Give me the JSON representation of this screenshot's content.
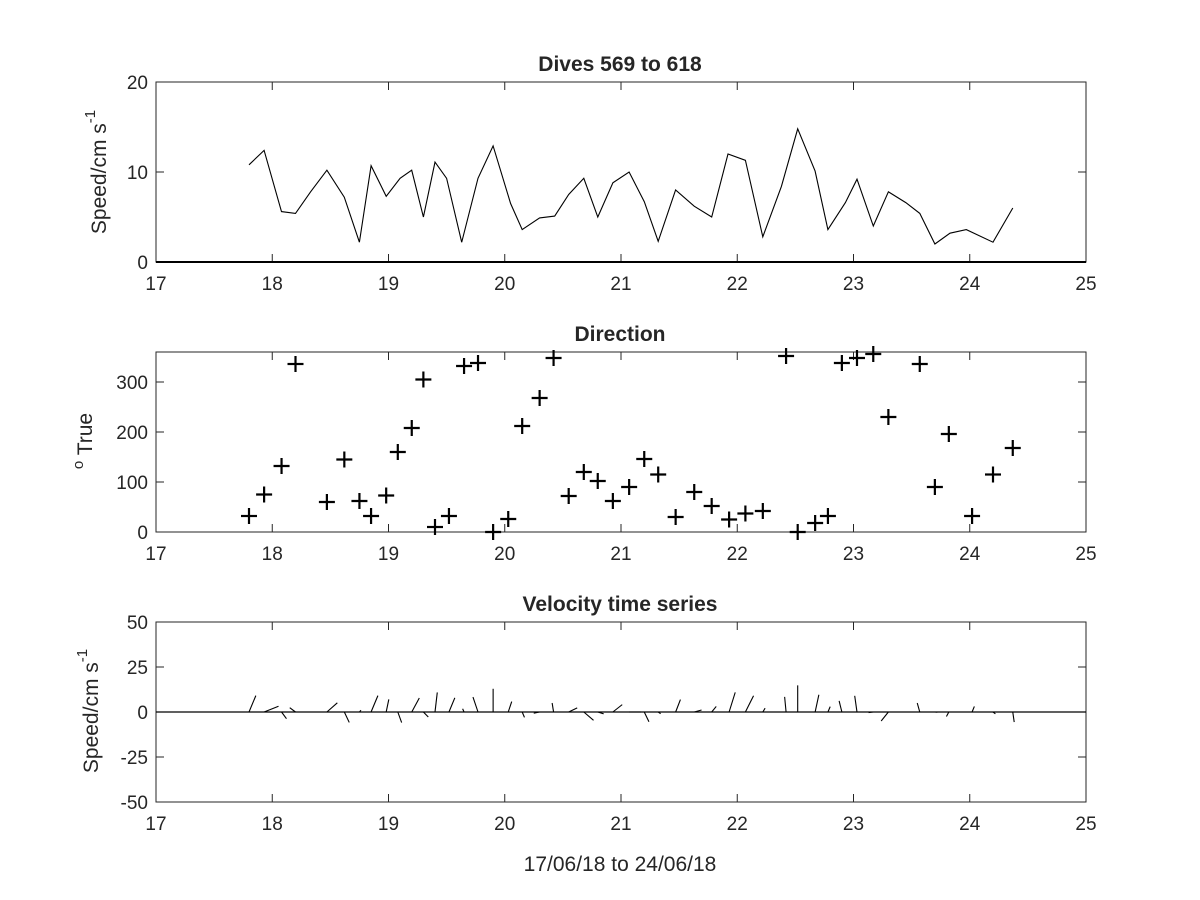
{
  "chart_data": [
    {
      "type": "line",
      "title": "Dives 569 to 618",
      "ylabel_parts": [
        "Speed/cm s",
        "-1"
      ],
      "xlim": [
        17,
        25
      ],
      "ylim": [
        0,
        20
      ],
      "xticks": [
        17,
        18,
        19,
        20,
        21,
        22,
        23,
        24,
        25
      ],
      "yticks": [
        0,
        10,
        20
      ],
      "grid": false,
      "series": [
        {
          "x": [
            17.8,
            17.93,
            18.08,
            18.2,
            18.33,
            18.47,
            18.62,
            18.75,
            18.85,
            18.98,
            19.1,
            19.2,
            19.3,
            19.4,
            19.5,
            19.63,
            19.77,
            19.9,
            20.05,
            20.15,
            20.3,
            20.43,
            20.55,
            20.68,
            20.8,
            20.93,
            21.07,
            21.2,
            21.32,
            21.47,
            21.63,
            21.78,
            21.92,
            22.07,
            22.22,
            22.38,
            22.52,
            22.67,
            22.78,
            22.93,
            23.03,
            23.17,
            23.3,
            23.45,
            23.57,
            23.7,
            23.83,
            23.97,
            24.2,
            24.37
          ],
          "y": [
            10.8,
            12.4,
            5.6,
            5.4,
            7.8,
            10.2,
            7.2,
            2.2,
            10.7,
            7.3,
            9.3,
            10.2,
            5.0,
            11.1,
            9.3,
            2.2,
            9.3,
            12.9,
            6.5,
            3.6,
            4.9,
            5.1,
            7.5,
            9.3,
            5.0,
            8.8,
            10.0,
            6.7,
            2.3,
            8.0,
            6.2,
            5.0,
            12.0,
            11.3,
            2.8,
            8.4,
            14.8,
            10.1,
            3.6,
            6.6,
            9.2,
            4.0,
            7.8,
            6.6,
            5.4,
            2.0,
            3.2,
            3.6,
            2.2,
            6.0
          ]
        }
      ]
    },
    {
      "type": "scatter",
      "title": "Direction",
      "ylabel_parts": [
        "o",
        " True"
      ],
      "xlim": [
        17,
        25
      ],
      "ylim": [
        0,
        360
      ],
      "xticks": [
        17,
        18,
        19,
        20,
        21,
        22,
        23,
        24,
        25
      ],
      "yticks": [
        0,
        100,
        200,
        300
      ],
      "grid": false,
      "marker": "+",
      "series": [
        {
          "x": [
            17.8,
            17.93,
            18.08,
            18.2,
            18.47,
            18.62,
            18.75,
            18.85,
            18.98,
            19.08,
            19.2,
            19.3,
            19.4,
            19.52,
            19.65,
            19.77,
            19.9,
            20.03,
            20.15,
            20.3,
            20.42,
            20.55,
            20.68,
            20.8,
            20.93,
            21.07,
            21.2,
            21.32,
            21.47,
            21.63,
            21.78,
            21.93,
            22.07,
            22.22,
            22.42,
            22.52,
            22.67,
            22.78,
            22.9,
            23.03,
            23.17,
            23.3,
            23.57,
            23.7,
            23.82,
            24.02,
            24.2,
            24.37
          ],
          "y": [
            32,
            75,
            132,
            336,
            60,
            145,
            62,
            32,
            73,
            160,
            208,
            305,
            10,
            32,
            332,
            338,
            0,
            26,
            212,
            268,
            348,
            72,
            120,
            102,
            62,
            90,
            146,
            115,
            30,
            80,
            52,
            25,
            37,
            42,
            352,
            0,
            18,
            32,
            338,
            348,
            356,
            230,
            336,
            90,
            196,
            32,
            115,
            168
          ]
        }
      ]
    },
    {
      "type": "quiver",
      "title": "Velocity time series",
      "ylabel_parts": [
        "Speed/cm s",
        "-1"
      ],
      "xlabel": "17/06/18 to 24/06/18",
      "xlim": [
        17,
        25
      ],
      "ylim": [
        -50,
        50
      ],
      "xticks": [
        17,
        18,
        19,
        20,
        21,
        22,
        23,
        24,
        25
      ],
      "yticks": [
        -50,
        -25,
        0,
        25,
        50
      ],
      "grid": false,
      "vectors": [
        {
          "t": 17.8,
          "u": 5.7,
          "v": 9.1
        },
        {
          "t": 17.93,
          "u": 12.0,
          "v": 3.2
        },
        {
          "t": 18.08,
          "u": 4.1,
          "v": -3.7
        },
        {
          "t": 18.2,
          "u": -4.8,
          "v": 2.4
        },
        {
          "t": 18.47,
          "u": 8.7,
          "v": 5.1
        },
        {
          "t": 18.62,
          "u": 4.1,
          "v": -5.8
        },
        {
          "t": 18.75,
          "u": 1.3,
          "v": 1.0
        },
        {
          "t": 18.85,
          "u": 5.7,
          "v": 9.1
        },
        {
          "t": 18.98,
          "u": 2.2,
          "v": 7.0
        },
        {
          "t": 19.08,
          "u": 3.2,
          "v": -5.9
        },
        {
          "t": 19.2,
          "u": 6.3,
          "v": 7.8
        },
        {
          "t": 19.3,
          "u": 4.1,
          "v": -2.8
        },
        {
          "t": 19.4,
          "u": 1.9,
          "v": 10.9
        },
        {
          "t": 19.52,
          "u": 4.9,
          "v": 7.9
        },
        {
          "t": 19.65,
          "u": -1.2,
          "v": 1.8
        },
        {
          "t": 19.77,
          "u": -4.2,
          "v": 8.3
        },
        {
          "t": 19.9,
          "u": 0.0,
          "v": 12.9
        },
        {
          "t": 20.03,
          "u": 2.9,
          "v": 5.8
        },
        {
          "t": 20.15,
          "u": 1.9,
          "v": -3.0
        },
        {
          "t": 20.3,
          "u": -4.9,
          "v": -0.7
        },
        {
          "t": 20.42,
          "u": -1.2,
          "v": 5.0
        },
        {
          "t": 20.55,
          "u": 7.1,
          "v": 2.3
        },
        {
          "t": 20.68,
          "u": 8.1,
          "v": -4.6
        },
        {
          "t": 20.8,
          "u": 4.9,
          "v": -1.0
        },
        {
          "t": 20.93,
          "u": 7.8,
          "v": 4.1
        },
        {
          "t": 21.07,
          "u": 10.0,
          "v": 0.0
        },
        {
          "t": 21.2,
          "u": 3.9,
          "v": -5.4
        },
        {
          "t": 21.32,
          "u": 2.0,
          "v": -0.9
        },
        {
          "t": 21.47,
          "u": 4.0,
          "v": 6.9
        },
        {
          "t": 21.63,
          "u": 6.1,
          "v": 1.1
        },
        {
          "t": 21.78,
          "u": 3.8,
          "v": 3.1
        },
        {
          "t": 21.93,
          "u": 5.1,
          "v": 10.9
        },
        {
          "t": 22.07,
          "u": 6.8,
          "v": 9.0
        },
        {
          "t": 22.22,
          "u": 1.9,
          "v": 2.1
        },
        {
          "t": 22.42,
          "u": -1.2,
          "v": 8.4
        },
        {
          "t": 22.52,
          "u": 0.0,
          "v": 14.8
        },
        {
          "t": 22.67,
          "u": 3.1,
          "v": 9.6
        },
        {
          "t": 22.78,
          "u": 1.9,
          "v": 3.0
        },
        {
          "t": 22.9,
          "u": -2.3,
          "v": 6.2
        },
        {
          "t": 23.03,
          "u": -1.9,
          "v": 9.0
        },
        {
          "t": 23.17,
          "u": -3.9,
          "v": -0.3
        },
        {
          "t": 23.3,
          "u": -6.0,
          "v": -5.0
        },
        {
          "t": 23.57,
          "u": -2.1,
          "v": 5.0
        },
        {
          "t": 23.7,
          "u": 2.0,
          "v": -0.1
        },
        {
          "t": 23.82,
          "u": -2.0,
          "v": -2.5
        },
        {
          "t": 24.02,
          "u": 1.9,
          "v": 3.1
        },
        {
          "t": 24.2,
          "u": 2.0,
          "v": -1.0
        },
        {
          "t": 24.37,
          "u": 1.2,
          "v": -5.6
        }
      ]
    }
  ]
}
